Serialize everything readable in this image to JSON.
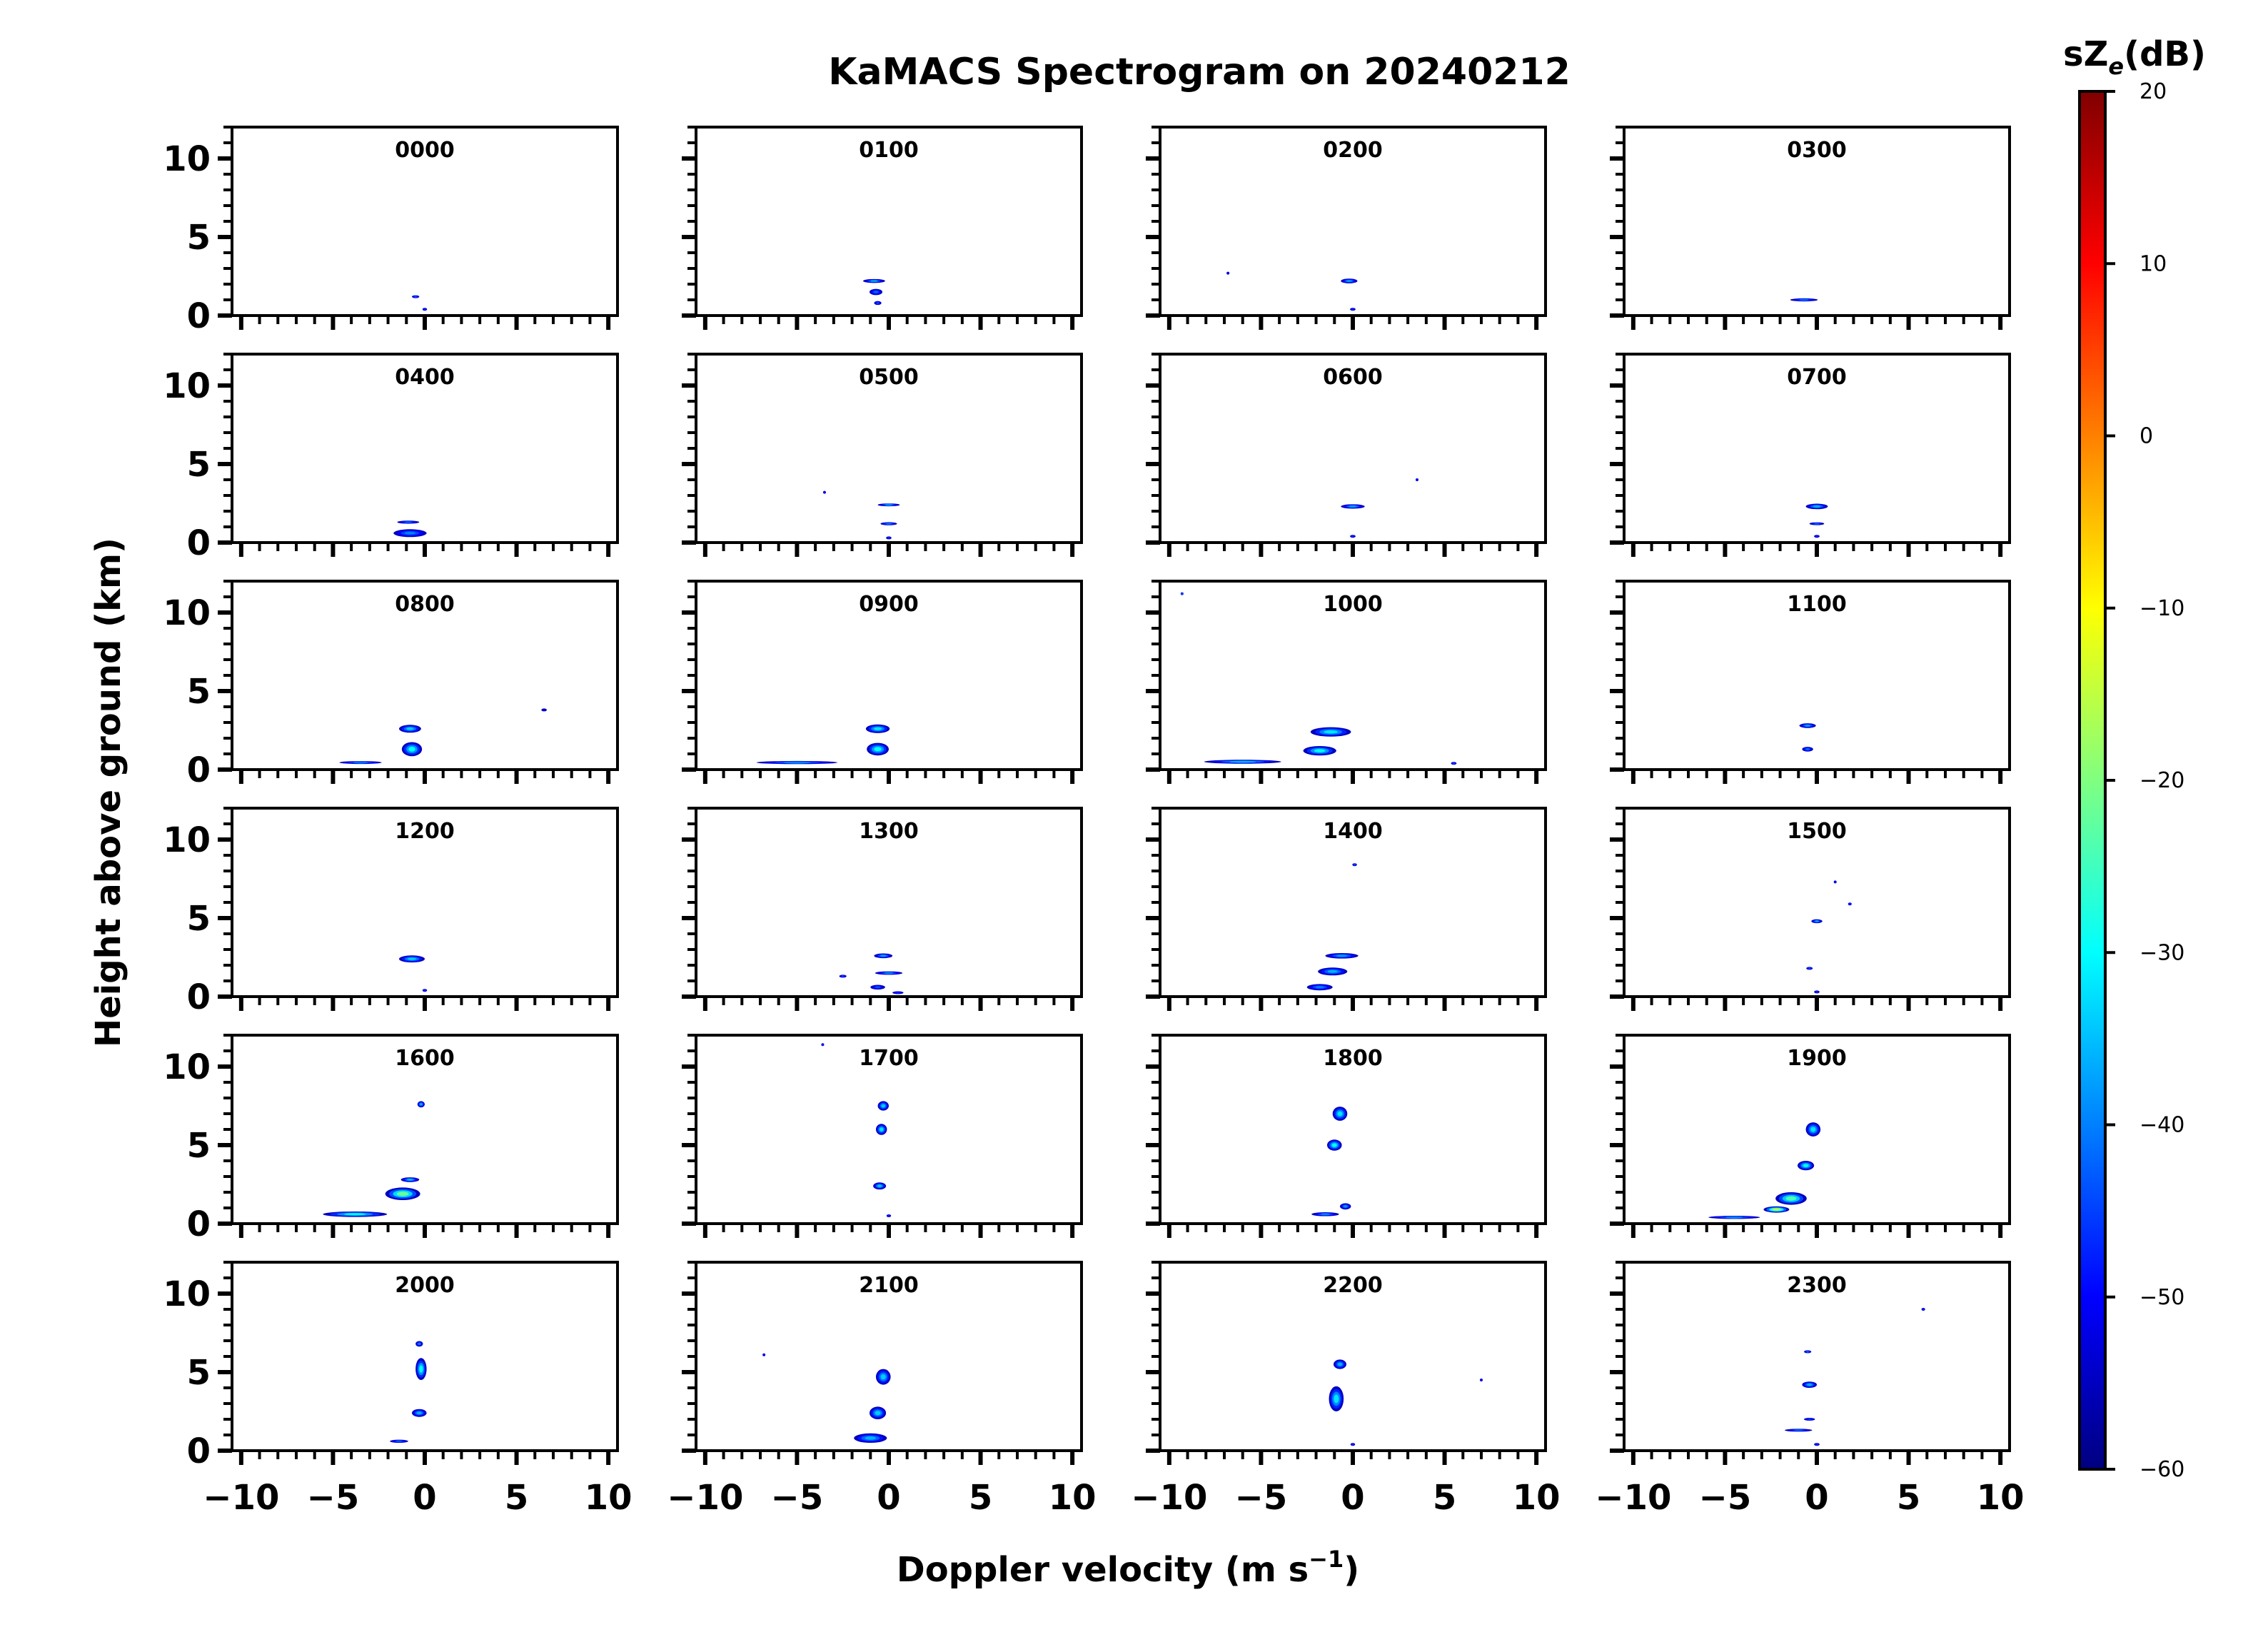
{
  "chart_data": {
    "type": "heatmap",
    "title": "KaMACS Spectrogram on 20240212",
    "xlabel": "Doppler velocity (m s",
    "xlabel_sup": "−1",
    "xlabel_close": ")",
    "ylabel": "Height above ground (km)",
    "xlim": [
      -10.5,
      10.5
    ],
    "ylim": [
      0,
      12
    ],
    "x_ticks": [
      -10,
      -5,
      0,
      5,
      10
    ],
    "x_tick_labels": [
      "−10",
      "−5",
      "0",
      "5",
      "10"
    ],
    "y_ticks": [
      0,
      5,
      10
    ],
    "y_tick_labels": [
      "0",
      "5",
      "10"
    ],
    "colorbar": {
      "label_main": "sZ",
      "label_sub": "e",
      "label_unit": "(dB)",
      "range": [
        -60,
        20
      ],
      "ticks": [
        20,
        10,
        0,
        -10,
        -20,
        -30,
        -40,
        -50,
        -60
      ],
      "tick_labels": [
        "20",
        "10",
        "0",
        "−10",
        "−20",
        "−30",
        "−40",
        "−50",
        "−60"
      ],
      "stops": [
        "#000080",
        "#0000ff",
        "#0080ff",
        "#00ffff",
        "#80ff80",
        "#ffff00",
        "#ff8000",
        "#ff0000",
        "#800000"
      ]
    },
    "panels": [
      {
        "label": "0000",
        "blobs": [
          [
            -0.5,
            1.2,
            0.4,
            0.08,
            -45
          ],
          [
            0,
            0.4,
            0.25,
            0.1,
            -48
          ]
        ]
      },
      {
        "label": "0100",
        "blobs": [
          [
            -0.8,
            2.2,
            1.2,
            0.25,
            -38
          ],
          [
            -0.7,
            1.5,
            0.7,
            0.4,
            -42
          ],
          [
            -0.6,
            0.8,
            0.4,
            0.25,
            -45
          ]
        ]
      },
      {
        "label": "0200",
        "blobs": [
          [
            -0.2,
            2.2,
            0.9,
            0.3,
            -38
          ],
          [
            0,
            0.4,
            0.3,
            0.1,
            -48
          ],
          [
            -6.8,
            2.7,
            0.1,
            0.05,
            -52
          ]
        ]
      },
      {
        "label": "0300",
        "blobs": [
          [
            -0.7,
            1.0,
            1.5,
            0.2,
            -42
          ]
        ]
      },
      {
        "label": "0400",
        "blobs": [
          [
            -0.9,
            1.3,
            1.2,
            0.2,
            -44
          ],
          [
            -0.8,
            0.6,
            1.8,
            0.5,
            -40
          ]
        ]
      },
      {
        "label": "0500",
        "blobs": [
          [
            0,
            2.4,
            1.2,
            0.15,
            -40
          ],
          [
            0,
            1.2,
            0.9,
            0.2,
            -42
          ],
          [
            0,
            0.3,
            0.3,
            0.1,
            -48
          ],
          [
            -3.5,
            3.2,
            0.12,
            0.06,
            -50
          ]
        ]
      },
      {
        "label": "0600",
        "blobs": [
          [
            0,
            2.3,
            1.3,
            0.28,
            -38
          ],
          [
            0,
            0.4,
            0.3,
            0.1,
            -48
          ],
          [
            3.5,
            4.0,
            0.12,
            0.06,
            -50
          ]
        ]
      },
      {
        "label": "0700",
        "blobs": [
          [
            0,
            2.3,
            1.2,
            0.35,
            -36
          ],
          [
            0,
            1.2,
            0.8,
            0.15,
            -44
          ],
          [
            0,
            0.4,
            0.3,
            0.1,
            -48
          ]
        ]
      },
      {
        "label": "0800",
        "blobs": [
          [
            -0.8,
            2.6,
            1.2,
            0.5,
            -34
          ],
          [
            -0.7,
            1.3,
            1.1,
            0.9,
            -30
          ],
          [
            -3.5,
            0.45,
            2.3,
            0.18,
            -42
          ],
          [
            6.5,
            3.8,
            0.3,
            0.05,
            -54
          ]
        ]
      },
      {
        "label": "0900",
        "blobs": [
          [
            -0.6,
            2.6,
            1.3,
            0.55,
            -32
          ],
          [
            -0.6,
            1.3,
            1.2,
            0.8,
            -30
          ],
          [
            -5,
            0.45,
            4.4,
            0.2,
            -40
          ]
        ]
      },
      {
        "label": "1000",
        "blobs": [
          [
            -1.2,
            2.4,
            2.2,
            0.6,
            -32
          ],
          [
            -1.8,
            1.2,
            1.8,
            0.6,
            -30
          ],
          [
            -6,
            0.5,
            4.2,
            0.25,
            -36
          ],
          [
            -9.3,
            11.2,
            0.15,
            0.08,
            -45
          ],
          [
            5.5,
            0.4,
            0.3,
            0.1,
            -46
          ]
        ]
      },
      {
        "label": "1100",
        "blobs": [
          [
            -0.5,
            2.8,
            0.9,
            0.3,
            -38
          ],
          [
            -0.5,
            1.3,
            0.6,
            0.3,
            -42
          ]
        ]
      },
      {
        "label": "1200",
        "blobs": [
          [
            -0.7,
            2.4,
            1.4,
            0.45,
            -34
          ],
          [
            0,
            0.4,
            0.25,
            0.1,
            -48
          ]
        ]
      },
      {
        "label": "1300",
        "blobs": [
          [
            -0.3,
            2.6,
            1.0,
            0.3,
            -38
          ],
          [
            0,
            1.5,
            1.5,
            0.22,
            -40
          ],
          [
            -2.5,
            1.3,
            0.4,
            0.08,
            -46
          ],
          [
            -0.6,
            0.6,
            0.8,
            0.3,
            -44
          ],
          [
            0.5,
            0.25,
            0.6,
            0.1,
            -48
          ]
        ]
      },
      {
        "label": "1400",
        "blobs": [
          [
            -0.6,
            2.6,
            1.8,
            0.35,
            -38
          ],
          [
            -1.1,
            1.6,
            1.6,
            0.5,
            -36
          ],
          [
            -1.8,
            0.6,
            1.4,
            0.4,
            -40
          ],
          [
            0.1,
            8.4,
            0.25,
            0.08,
            -46
          ]
        ]
      },
      {
        "label": "1500",
        "blobs": [
          [
            0,
            4.8,
            0.6,
            0.25,
            -38
          ],
          [
            -0.4,
            1.8,
            0.35,
            0.08,
            -46
          ],
          [
            0,
            0.3,
            0.3,
            0.1,
            -48
          ],
          [
            1.8,
            5.9,
            0.2,
            0.06,
            -48
          ],
          [
            1.0,
            7.3,
            0.15,
            0.05,
            -50
          ]
        ]
      },
      {
        "label": "1600",
        "blobs": [
          [
            -0.2,
            7.6,
            0.4,
            0.4,
            -36
          ],
          [
            -1.2,
            1.9,
            1.9,
            0.8,
            -22
          ],
          [
            -3.8,
            0.6,
            3.5,
            0.35,
            -30
          ],
          [
            -0.8,
            2.8,
            1.0,
            0.3,
            -36
          ]
        ]
      },
      {
        "label": "1700",
        "blobs": [
          [
            -0.3,
            7.5,
            0.6,
            0.6,
            -34
          ],
          [
            -0.4,
            6.0,
            0.6,
            0.7,
            -32
          ],
          [
            -0.5,
            2.4,
            0.7,
            0.45,
            -34
          ],
          [
            0,
            0.5,
            0.25,
            0.1,
            -48
          ],
          [
            -3.6,
            11.4,
            0.15,
            0.05,
            -48
          ]
        ]
      },
      {
        "label": "1800",
        "blobs": [
          [
            -0.7,
            7.0,
            0.8,
            0.9,
            -32
          ],
          [
            -1.0,
            5.0,
            0.8,
            0.7,
            -30
          ],
          [
            -1.5,
            0.6,
            1.5,
            0.25,
            -40
          ],
          [
            -0.4,
            1.1,
            0.6,
            0.4,
            -38
          ]
        ]
      },
      {
        "label": "1900",
        "blobs": [
          [
            -0.2,
            6.0,
            0.8,
            0.9,
            -32
          ],
          [
            -0.6,
            3.7,
            0.9,
            0.6,
            -30
          ],
          [
            -1.4,
            1.6,
            1.7,
            0.8,
            -24
          ],
          [
            -2.2,
            0.9,
            1.4,
            0.4,
            -15
          ],
          [
            -4.5,
            0.4,
            2.8,
            0.2,
            -40
          ]
        ]
      },
      {
        "label": "2000",
        "blobs": [
          [
            -0.2,
            5.2,
            0.6,
            1.4,
            -30
          ],
          [
            -0.3,
            2.4,
            0.8,
            0.5,
            -36
          ],
          [
            -1.4,
            0.6,
            1.0,
            0.2,
            -44
          ],
          [
            -0.3,
            6.8,
            0.4,
            0.35,
            -40
          ]
        ]
      },
      {
        "label": "2100",
        "blobs": [
          [
            -0.3,
            4.7,
            0.8,
            1.0,
            -34
          ],
          [
            -0.6,
            2.4,
            0.9,
            0.8,
            -34
          ],
          [
            -1.0,
            0.8,
            1.8,
            0.6,
            -36
          ],
          [
            -6.8,
            6.1,
            0.12,
            0.05,
            -50
          ]
        ]
      },
      {
        "label": "2200",
        "blobs": [
          [
            -0.7,
            5.5,
            0.7,
            0.6,
            -36
          ],
          [
            -0.9,
            3.3,
            0.8,
            1.6,
            -32
          ],
          [
            0,
            0.4,
            0.25,
            0.1,
            -48
          ],
          [
            7.0,
            4.5,
            0.15,
            0.05,
            -50
          ]
        ]
      },
      {
        "label": "2300",
        "blobs": [
          [
            -0.4,
            4.2,
            0.8,
            0.4,
            -36
          ],
          [
            -0.5,
            6.3,
            0.4,
            0.08,
            -44
          ],
          [
            -1.0,
            1.3,
            1.5,
            0.12,
            -44
          ],
          [
            -0.4,
            2.0,
            0.6,
            0.1,
            -46
          ],
          [
            0,
            0.4,
            0.3,
            0.1,
            -48
          ],
          [
            5.8,
            9.0,
            0.2,
            0.06,
            -48
          ]
        ]
      }
    ]
  }
}
